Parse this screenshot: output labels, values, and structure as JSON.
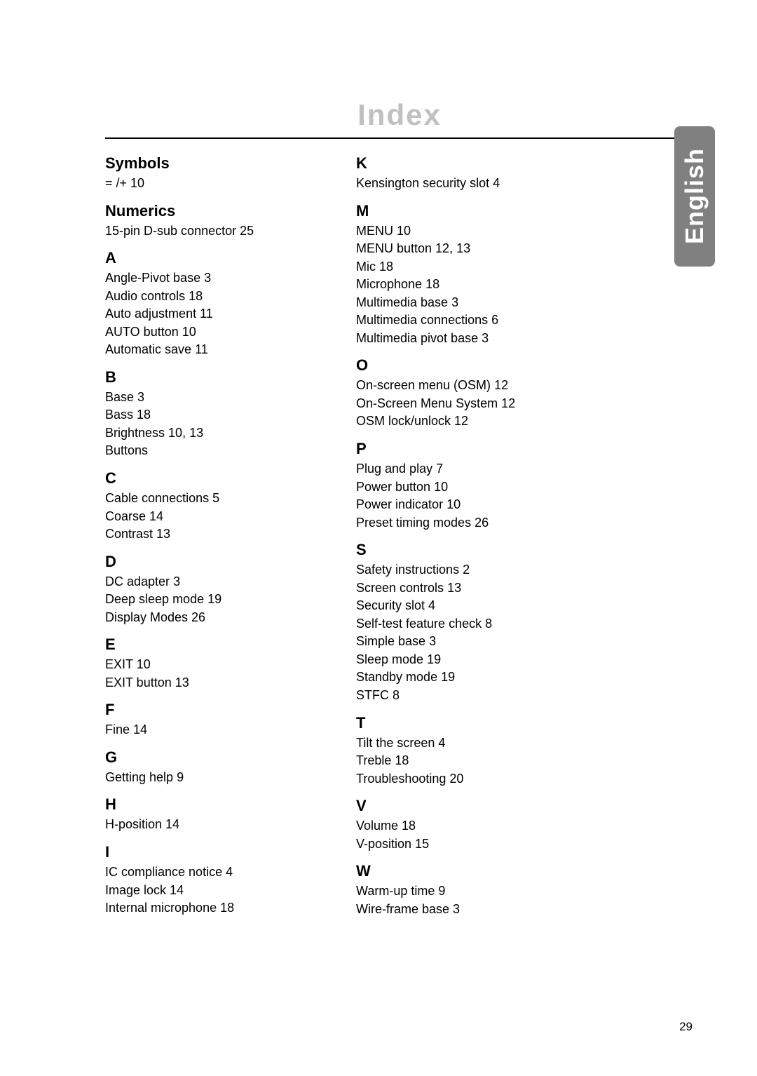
{
  "title": "Index",
  "side_tab": "English",
  "page_number": "29",
  "left": [
    {
      "header": "Symbols",
      "entries": [
        {
          "term": "= /+",
          "page": "10"
        }
      ]
    },
    {
      "header": "Numerics",
      "entries": [
        {
          "term": "15-pin D-sub connector",
          "page": "25"
        }
      ]
    },
    {
      "header": "A",
      "entries": [
        {
          "term": "Angle-Pivot base",
          "page": "3"
        },
        {
          "term": "Audio controls",
          "page": "18"
        },
        {
          "term": "Auto adjustment",
          "page": "11"
        },
        {
          "term": "AUTO button",
          "page": "10"
        },
        {
          "term": "Automatic save",
          "page": "11"
        }
      ]
    },
    {
      "header": "B",
      "entries": [
        {
          "term": "Base",
          "page": "3"
        },
        {
          "term": "Bass",
          "page": "18"
        },
        {
          "term": "Brightness",
          "page": "10, 13"
        },
        {
          "term": "Buttons",
          "page": ""
        }
      ]
    },
    {
      "header": "C",
      "entries": [
        {
          "term": "Cable connections",
          "page": "5"
        },
        {
          "term": "Coarse",
          "page": "14"
        },
        {
          "term": "Contrast",
          "page": "13"
        }
      ]
    },
    {
      "header": "D",
      "entries": [
        {
          "term": "DC adapter",
          "page": "3"
        },
        {
          "term": "Deep sleep mode",
          "page": "19"
        },
        {
          "term": "Display Modes",
          "page": "26"
        }
      ]
    },
    {
      "header": "E",
      "entries": [
        {
          "term": "EXIT",
          "page": "10"
        },
        {
          "term": "EXIT button",
          "page": "13"
        }
      ]
    },
    {
      "header": "F",
      "entries": [
        {
          "term": "Fine",
          "page": "14"
        }
      ]
    },
    {
      "header": "G",
      "entries": [
        {
          "term": "Getting help",
          "page": "9"
        }
      ]
    },
    {
      "header": "H",
      "entries": [
        {
          "term": "H-position",
          "page": "14"
        }
      ]
    },
    {
      "header": "I",
      "entries": [
        {
          "term": "IC compliance notice",
          "page": "4"
        },
        {
          "term": "Image lock",
          "page": "14"
        },
        {
          "term": "Internal microphone",
          "page": "18"
        }
      ]
    }
  ],
  "right": [
    {
      "header": "K",
      "entries": [
        {
          "term": "Kensington security slot",
          "page": "4"
        }
      ]
    },
    {
      "header": "M",
      "entries": [
        {
          "term": "MENU",
          "page": "10"
        },
        {
          "term": "MENU button",
          "page": "12, 13"
        },
        {
          "term": "Mic",
          "page": "18"
        },
        {
          "term": "Microphone",
          "page": "18"
        },
        {
          "term": "Multimedia base",
          "page": "3"
        },
        {
          "term": "Multimedia connections",
          "page": "6"
        },
        {
          "term": "Multimedia pivot base",
          "page": "3"
        }
      ]
    },
    {
      "header": "O",
      "entries": [
        {
          "term": "On-screen menu (OSM)",
          "page": "12"
        },
        {
          "term": "On-Screen Menu System",
          "page": "12"
        },
        {
          "term": "OSM lock/unlock",
          "page": "12"
        }
      ]
    },
    {
      "header": "P",
      "entries": [
        {
          "term": "Plug and play",
          "page": "7"
        },
        {
          "term": "Power button",
          "page": "10"
        },
        {
          "term": "Power indicator",
          "page": "10"
        },
        {
          "term": "Preset timing modes",
          "page": "26"
        }
      ]
    },
    {
      "header": "S",
      "entries": [
        {
          "term": "Safety instructions",
          "page": "2"
        },
        {
          "term": "Screen controls",
          "page": "13"
        },
        {
          "term": "Security slot",
          "page": "4"
        },
        {
          "term": "Self-test feature check",
          "page": "8"
        },
        {
          "term": "Simple base",
          "page": "3"
        },
        {
          "term": "Sleep mode",
          "page": "19"
        },
        {
          "term": "Standby mode",
          "page": "19"
        },
        {
          "term": "STFC",
          "page": "8"
        }
      ]
    },
    {
      "header": "T",
      "entries": [
        {
          "term": "Tilt the screen",
          "page": "4"
        },
        {
          "term": "Treble",
          "page": "18"
        },
        {
          "term": "Troubleshooting",
          "page": "20"
        }
      ]
    },
    {
      "header": "V",
      "entries": [
        {
          "term": "Volume",
          "page": "18"
        },
        {
          "term": "V-position",
          "page": "15"
        }
      ]
    },
    {
      "header": "W",
      "entries": [
        {
          "term": "Warm-up time",
          "page": "9"
        },
        {
          "term": "Wire-frame base",
          "page": "3"
        }
      ]
    }
  ]
}
